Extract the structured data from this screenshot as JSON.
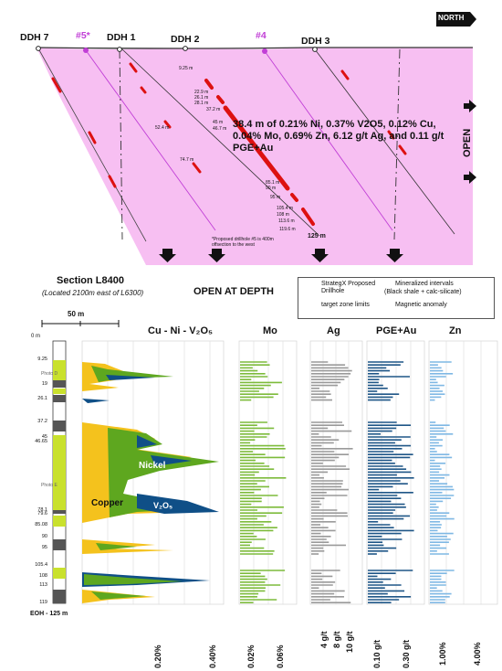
{
  "north_label": "NORTH",
  "holes": [
    "DDH 7",
    "#5*",
    "DDH 1",
    "DDH 2",
    "#4",
    "DDH 3"
  ],
  "intercepts": [
    "9.25 m",
    "22.9 m",
    "26.1 m",
    "28.1 m",
    "37.2 m",
    "45 m",
    "46.7 m",
    "85.1 m",
    "90 m",
    "95 m",
    "105.4 m",
    "108 m",
    "113.6 m",
    "119.6 m",
    "125 m",
    "52.4 m",
    "74.7 m"
  ],
  "callout": "38.4 m of 0.21% Ni, 0.37% V2O5, 0.12% Cu, 0.04% Mo, 0.69% Zn, 6.12 g/t Ag, and 0.11 g/t PGE+Au",
  "open_side": "OPEN",
  "open_depth": "OPEN AT DEPTH",
  "proposed_note": "*Proposed drillhole #5 is 400m offsection to the west",
  "section_title": "Section L8400",
  "section_sub": "(Located 2100m east of L6300)",
  "scale_label": "50 m",
  "legend": {
    "proposed": "StrategX Proposed Drillhole",
    "mineralized": "Mineralized intervals",
    "mineralized_sub": "(Black shale + calc-silicate)",
    "target": "target zone limits",
    "magnetic": "Magnetic anomaly"
  },
  "log": {
    "top": "0 m",
    "bottom": "EOH - 125 m",
    "depths": [
      "9.25",
      "19",
      "26.1",
      "37.2",
      "45",
      "46.65",
      "78.1",
      "79.6",
      "85.08",
      "90",
      "95",
      "105.4",
      "108",
      "113",
      "119"
    ],
    "photo_d": "Photo D",
    "photo_e": "Photo E"
  },
  "columns": {
    "cu": "Cu - Ni - V₂O₅",
    "mo": "Mo",
    "ag": "Ag",
    "pge": "PGE+Au",
    "zn": "Zn"
  },
  "plot_labels": {
    "nickel": "Nickel",
    "copper": "Copper",
    "v2o5": "V₂O₅"
  },
  "axis_ticks": {
    "cu": [
      "0.20%",
      "0.40%"
    ],
    "mo": [
      "0.02%",
      "0.06%"
    ],
    "ag": [
      "4 g/t",
      "8 g/t",
      "10 g/t"
    ],
    "pge": [
      "0.10 g/t",
      "0.30 g/t"
    ],
    "zn": [
      "1.00%",
      "4.00%"
    ]
  },
  "colors": {
    "magnetic": "#f7bff2",
    "mineral": "#dd1111",
    "proposed": "#c13fd6",
    "cu": "#f4c21d",
    "ni": "#5ea71f",
    "v": "#0f4f87",
    "mo": "#7dbb3b",
    "ag": "#9a9a9a",
    "pge": "#1f5687",
    "zn": "#7fb8e4",
    "log_yellow": "#c9e12d",
    "log_grey": "#555555"
  }
}
